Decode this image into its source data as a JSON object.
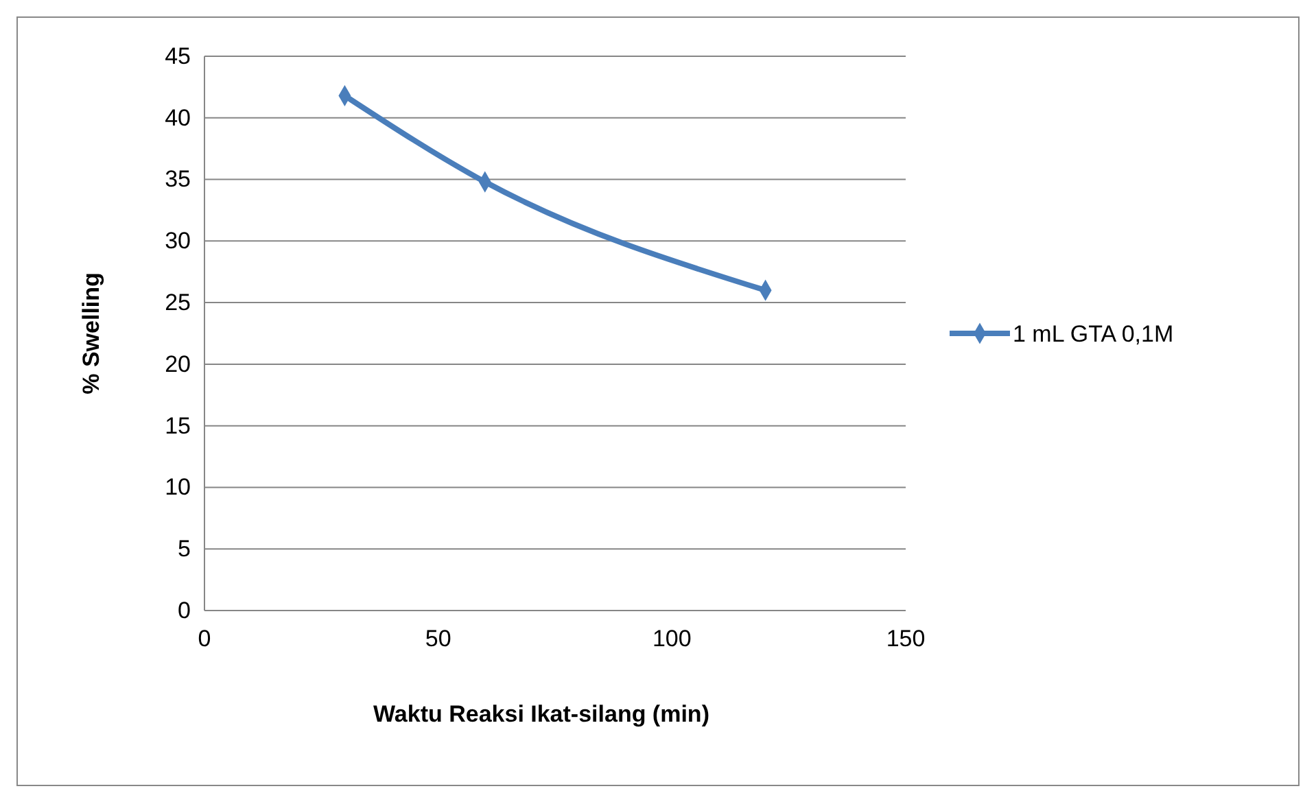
{
  "chart_data": {
    "type": "line",
    "xlabel": "Waktu Reaksi Ikat-silang (min)",
    "ylabel": "% Swelling",
    "x": [
      30,
      60,
      120
    ],
    "series": [
      {
        "name": "1 mL GTA 0,1M",
        "color": "#4a7ebb",
        "values": [
          41.8,
          34.8,
          26.0
        ]
      }
    ],
    "xlim": [
      0,
      150
    ],
    "xticks": [
      0,
      50,
      100,
      150
    ],
    "ylim": [
      0,
      45
    ],
    "yticks": [
      0,
      5,
      10,
      15,
      20,
      25,
      30,
      35,
      40,
      45
    ],
    "grid": "y",
    "legend": "right",
    "marker": "diamond",
    "line_style": "solid"
  }
}
